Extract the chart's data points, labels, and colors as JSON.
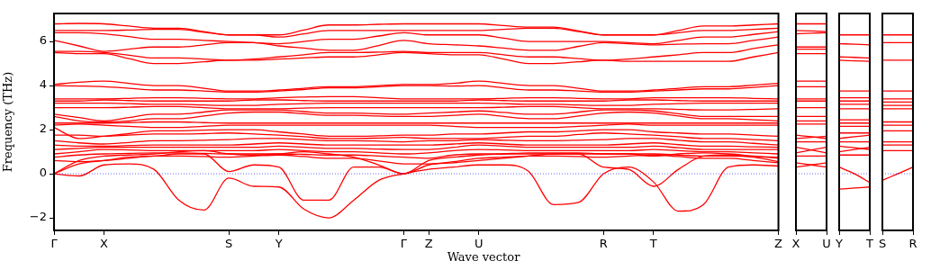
{
  "chart_data": [
    {
      "type": "line",
      "xlabel": "Wave vector",
      "ylabel": "Frequency (THz)",
      "legend": false,
      "grid": false,
      "marker": "none",
      "line_style": "solid",
      "ylim": [
        -2.57,
        7.27
      ],
      "yticks": [
        {
          "value": -2,
          "label": "−2"
        },
        0,
        2,
        4,
        6
      ],
      "ref_lines": [
        {
          "axis": "y",
          "value": 0,
          "color": "#0000ff",
          "line_style": "dotted"
        }
      ],
      "categories": [
        "Γ",
        null,
        "X",
        null,
        null,
        null,
        null,
        "S",
        null,
        "Y",
        null,
        null,
        null,
        null,
        "Γ",
        "Z",
        null,
        "U",
        null,
        null,
        null,
        null,
        "R",
        null,
        "T",
        null,
        null,
        null,
        null,
        "Z"
      ],
      "series": [
        {
          "color": "#ff0000",
          "values": [
            6.8,
            6.82,
            6.8,
            6.7,
            6.6,
            6.6,
            6.45,
            6.3,
            6.3,
            6.3,
            6.52,
            6.75,
            6.75,
            6.78,
            6.8,
            6.8,
            6.8,
            6.8,
            6.72,
            6.65,
            6.65,
            6.48,
            6.3,
            6.3,
            6.3,
            6.5,
            6.7,
            6.7,
            6.75,
            6.8
          ]
        },
        {
          "color": "#ff0000",
          "values": [
            6.5,
            6.5,
            6.5,
            6.52,
            6.55,
            6.55,
            6.42,
            6.3,
            6.3,
            6.2,
            6.35,
            6.5,
            6.5,
            6.5,
            6.5,
            6.5,
            6.5,
            6.5,
            6.55,
            6.6,
            6.6,
            6.45,
            6.3,
            6.3,
            6.3,
            6.4,
            6.5,
            6.5,
            6.55,
            6.6
          ]
        },
        {
          "color": "#ff0000",
          "values": [
            6.4,
            6.4,
            6.35,
            6.22,
            6.1,
            6.1,
            6.05,
            6.0,
            5.95,
            5.9,
            6.0,
            6.1,
            6.1,
            6.25,
            6.4,
            6.3,
            6.3,
            6.3,
            6.15,
            6.0,
            6.0,
            6.0,
            6.0,
            5.95,
            5.9,
            6.05,
            6.2,
            6.2,
            6.32,
            6.45
          ]
        },
        {
          "color": "#ff0000",
          "values": [
            6.05,
            5.8,
            5.55,
            5.65,
            5.75,
            5.75,
            5.85,
            5.95,
            5.95,
            5.8,
            5.7,
            5.6,
            5.6,
            5.82,
            6.05,
            5.9,
            5.85,
            5.8,
            5.7,
            5.6,
            5.6,
            5.78,
            5.95,
            5.9,
            5.85,
            5.88,
            5.9,
            5.9,
            6.05,
            6.2
          ]
        },
        {
          "color": "#ff0000",
          "values": [
            5.55,
            5.55,
            5.5,
            5.38,
            5.25,
            5.25,
            5.2,
            5.15,
            5.2,
            5.3,
            5.4,
            5.5,
            5.5,
            5.52,
            5.55,
            5.5,
            5.5,
            5.5,
            5.4,
            5.3,
            5.3,
            5.22,
            5.15,
            5.2,
            5.3,
            5.4,
            5.5,
            5.5,
            5.68,
            5.85
          ]
        },
        {
          "color": "#ff0000",
          "values": [
            5.5,
            5.45,
            5.45,
            5.22,
            5.0,
            5.0,
            5.08,
            5.15,
            5.15,
            5.2,
            5.25,
            5.3,
            5.3,
            5.4,
            5.5,
            5.45,
            5.4,
            5.4,
            5.2,
            5.0,
            5.0,
            5.08,
            5.15,
            5.1,
            5.1,
            5.1,
            5.1,
            5.1,
            5.3,
            5.5
          ]
        },
        {
          "color": "#ff0000",
          "values": [
            4.05,
            4.15,
            4.2,
            4.1,
            4.0,
            4.0,
            3.88,
            3.75,
            3.75,
            3.8,
            3.88,
            3.95,
            3.95,
            4.0,
            4.05,
            4.05,
            4.1,
            4.2,
            4.1,
            4.0,
            4.0,
            3.88,
            3.75,
            3.75,
            3.8,
            3.88,
            3.95,
            3.95,
            4.02,
            4.1
          ]
        },
        {
          "color": "#ff0000",
          "values": [
            4.0,
            3.98,
            3.95,
            3.88,
            3.8,
            3.8,
            3.75,
            3.7,
            3.7,
            3.75,
            3.82,
            3.9,
            3.9,
            3.95,
            4.0,
            4.0,
            3.98,
            4.0,
            3.9,
            3.8,
            3.8,
            3.75,
            3.7,
            3.7,
            3.75,
            3.8,
            3.85,
            3.85,
            3.92,
            4.0
          ]
        },
        {
          "color": "#ff0000",
          "values": [
            3.4,
            3.4,
            3.4,
            3.42,
            3.45,
            3.45,
            3.42,
            3.4,
            3.4,
            3.45,
            3.48,
            3.5,
            3.5,
            3.45,
            3.4,
            3.4,
            3.4,
            3.4,
            3.42,
            3.45,
            3.45,
            3.42,
            3.4,
            3.4,
            3.45,
            3.45,
            3.45,
            3.45,
            3.42,
            3.4
          ]
        },
        {
          "color": "#ff0000",
          "values": [
            3.3,
            3.3,
            3.35,
            3.32,
            3.3,
            3.3,
            3.3,
            3.3,
            3.35,
            3.35,
            3.32,
            3.3,
            3.3,
            3.3,
            3.3,
            3.3,
            3.3,
            3.35,
            3.32,
            3.3,
            3.3,
            3.3,
            3.3,
            3.35,
            3.35,
            3.32,
            3.3,
            3.3,
            3.3,
            3.3
          ]
        },
        {
          "color": "#ff0000",
          "values": [
            3.2,
            3.2,
            3.2,
            3.18,
            3.15,
            3.15,
            3.12,
            3.1,
            3.1,
            3.15,
            3.18,
            3.2,
            3.2,
            3.2,
            3.2,
            3.2,
            3.2,
            3.2,
            3.18,
            3.15,
            3.15,
            3.12,
            3.1,
            3.1,
            3.15,
            3.18,
            3.2,
            3.2,
            3.2,
            3.2
          ]
        },
        {
          "color": "#ff0000",
          "values": [
            3.0,
            3.0,
            3.0,
            3.02,
            3.05,
            3.05,
            3.0,
            2.95,
            2.95,
            2.95,
            2.98,
            3.0,
            3.0,
            3.0,
            3.0,
            3.0,
            3.0,
            3.0,
            3.02,
            3.05,
            3.05,
            3.0,
            2.95,
            2.95,
            2.95,
            2.92,
            2.9,
            2.9,
            2.92,
            2.95
          ]
        },
        {
          "color": "#ff0000",
          "values": [
            2.7,
            2.55,
            2.4,
            2.55,
            2.7,
            2.7,
            2.8,
            2.9,
            2.9,
            2.9,
            2.82,
            2.75,
            2.75,
            2.72,
            2.7,
            2.75,
            2.8,
            2.85,
            2.78,
            2.7,
            2.7,
            2.8,
            2.9,
            2.9,
            2.85,
            2.72,
            2.6,
            2.6,
            2.6,
            2.6
          ]
        },
        {
          "color": "#ff0000",
          "values": [
            2.6,
            2.4,
            2.35,
            2.4,
            2.5,
            2.5,
            2.62,
            2.75,
            2.8,
            2.8,
            2.72,
            2.65,
            2.65,
            2.62,
            2.6,
            2.6,
            2.65,
            2.7,
            2.6,
            2.5,
            2.5,
            2.62,
            2.75,
            2.8,
            2.75,
            2.62,
            2.5,
            2.5,
            2.45,
            2.4
          ]
        },
        {
          "color": "#ff0000",
          "values": [
            2.3,
            2.3,
            2.3,
            2.32,
            2.35,
            2.35,
            2.32,
            2.3,
            2.3,
            2.3,
            2.3,
            2.3,
            2.3,
            2.3,
            2.3,
            2.3,
            2.3,
            2.3,
            2.3,
            2.3,
            2.3,
            2.3,
            2.3,
            2.3,
            2.3,
            2.3,
            2.3,
            2.3,
            2.3,
            2.3
          ]
        },
        {
          "color": "#ff0000",
          "values": [
            2.2,
            2.25,
            2.2,
            2.15,
            2.1,
            2.1,
            2.15,
            2.2,
            2.2,
            2.2,
            2.2,
            2.2,
            2.2,
            2.2,
            2.2,
            2.2,
            2.15,
            2.1,
            2.1,
            2.1,
            2.1,
            2.15,
            2.2,
            2.25,
            2.2,
            2.2,
            2.2,
            2.2,
            2.2,
            2.2
          ]
        },
        {
          "color": "#ff0000",
          "values": [
            2.1,
            1.6,
            1.7,
            1.82,
            1.95,
            1.95,
            1.98,
            2.0,
            2.0,
            1.9,
            1.8,
            1.7,
            1.7,
            1.72,
            1.75,
            1.75,
            1.8,
            1.8,
            1.85,
            1.9,
            1.9,
            1.95,
            2.0,
            2.0,
            1.9,
            1.85,
            1.8,
            1.8,
            1.75,
            1.7
          ]
        },
        {
          "color": "#ff0000",
          "values": [
            1.75,
            1.75,
            1.7,
            1.75,
            1.8,
            1.8,
            1.82,
            1.85,
            1.8,
            1.75,
            1.68,
            1.6,
            1.6,
            1.62,
            1.65,
            1.6,
            1.6,
            1.6,
            1.65,
            1.7,
            1.7,
            1.78,
            1.85,
            1.8,
            1.75,
            1.68,
            1.6,
            1.6,
            1.55,
            1.5
          ]
        },
        {
          "color": "#ff0000",
          "values": [
            1.5,
            1.4,
            1.35,
            1.42,
            1.5,
            1.5,
            1.52,
            1.55,
            1.6,
            1.6,
            1.55,
            1.5,
            1.5,
            1.48,
            1.45,
            1.5,
            1.5,
            1.55,
            1.52,
            1.5,
            1.5,
            1.52,
            1.55,
            1.6,
            1.6,
            1.52,
            1.45,
            1.45,
            1.38,
            1.3
          ]
        },
        {
          "color": "#ff0000",
          "values": [
            1.3,
            1.25,
            1.25,
            1.28,
            1.3,
            1.3,
            1.3,
            1.3,
            1.35,
            1.4,
            1.35,
            1.3,
            1.3,
            1.3,
            1.3,
            1.3,
            1.35,
            1.4,
            1.35,
            1.3,
            1.3,
            1.3,
            1.3,
            1.35,
            1.4,
            1.32,
            1.25,
            1.25,
            1.22,
            1.2
          ]
        },
        {
          "color": "#ff0000",
          "values": [
            1.1,
            1.15,
            1.2,
            1.2,
            1.2,
            1.2,
            1.2,
            1.2,
            1.2,
            1.25,
            1.2,
            1.15,
            1.15,
            1.12,
            1.1,
            1.1,
            1.2,
            1.3,
            1.25,
            1.2,
            1.2,
            1.2,
            1.2,
            1.2,
            1.25,
            1.18,
            1.1,
            1.1,
            1.1,
            1.1
          ]
        },
        {
          "color": "#ff0000",
          "values": [
            0.9,
            1.0,
            1.1,
            1.08,
            1.05,
            1.05,
            1.05,
            1.05,
            1.05,
            1.1,
            1.05,
            1.0,
            1.0,
            0.95,
            0.9,
            0.95,
            1.05,
            1.1,
            1.08,
            1.05,
            1.05,
            1.05,
            1.05,
            1.05,
            1.1,
            1.05,
            1.0,
            1.0,
            0.95,
            0.9
          ]
        },
        {
          "color": "#ff0000",
          "values": [
            0.75,
            0.85,
            0.9,
            0.92,
            0.95,
            0.95,
            0.92,
            0.9,
            0.9,
            0.9,
            0.88,
            0.85,
            0.85,
            0.8,
            0.75,
            0.7,
            0.85,
            0.9,
            0.9,
            0.9,
            0.9,
            0.9,
            0.9,
            0.9,
            0.9,
            0.85,
            0.8,
            0.8,
            0.78,
            0.75
          ]
        },
        {
          "color": "#ff0000",
          "values": [
            0.6,
            0.55,
            0.6,
            0.7,
            0.8,
            0.8,
            0.78,
            0.75,
            0.8,
            0.85,
            0.78,
            0.7,
            0.7,
            0.58,
            0.45,
            0.45,
            0.55,
            0.7,
            0.75,
            0.8,
            0.8,
            0.78,
            0.75,
            0.8,
            0.85,
            0.78,
            0.7,
            0.7,
            0.6,
            0.5
          ]
        },
        {
          "color": "#ff0000",
          "values": [
            0,
            -0.1,
            0.4,
            0.45,
            0.2,
            -1.2,
            -1.65,
            -0.2,
            -0.57,
            -0.6,
            -1.6,
            -2.0,
            -1.2,
            -0.3,
            0,
            0.2,
            0.3,
            0.4,
            0.4,
            0.1,
            -1.4,
            -1.3,
            0,
            0.3,
            -0.37,
            -1.7,
            -1.4,
            0.3,
            0.4,
            0.35
          ]
        },
        {
          "color": "#ff0000",
          "values": [
            0,
            0.45,
            0.6,
            0.75,
            0.8,
            0.9,
            0.9,
            0.1,
            0.4,
            0.3,
            -1.2,
            -1.2,
            0.3,
            0.3,
            0,
            0.4,
            0.5,
            0.6,
            0.7,
            0.8,
            0.9,
            0.9,
            0.3,
            0.2,
            -0.57,
            0.2,
            0.8,
            0.85,
            0.75,
            0.55
          ]
        },
        {
          "color": "#ff0000",
          "values": [
            0,
            0.6,
            0.8,
            0.85,
            0.9,
            1.0,
            1.05,
            0.9,
            0.85,
            0.9,
            1.0,
            0.9,
            0.75,
            0.4,
            0,
            0.6,
            0.75,
            0.85,
            0.9,
            0.95,
            0.95,
            0.95,
            0.9,
            0.9,
            0.8,
            0.9,
            0.95,
            0.9,
            0.8,
            0.7
          ]
        }
      ]
    },
    {
      "type": "line",
      "legend": false,
      "grid": false,
      "marker": "none",
      "line_style": "solid",
      "tick_labels": "x",
      "ylim": [
        -2.57,
        7.27
      ],
      "categories": [
        "X",
        null,
        "U"
      ],
      "ref_lines": [
        {
          "axis": "y",
          "value": 0,
          "color": "#0000ff",
          "line_style": "dotted"
        }
      ],
      "series": [
        {
          "color": "#ff0000",
          "values": [
            6.8,
            6.8,
            6.8
          ]
        },
        {
          "color": "#ff0000",
          "values": [
            6.5,
            6.48,
            6.45
          ]
        },
        {
          "color": "#ff0000",
          "values": [
            6.35,
            6.38,
            6.4
          ]
        },
        {
          "color": "#ff0000",
          "values": [
            5.75,
            5.75,
            5.75
          ]
        },
        {
          "color": "#ff0000",
          "values": [
            5.65,
            5.65,
            5.65
          ]
        },
        {
          "color": "#ff0000",
          "values": [
            5.45,
            5.45,
            5.45
          ]
        },
        {
          "color": "#ff0000",
          "values": [
            4.2,
            4.2,
            4.2
          ]
        },
        {
          "color": "#ff0000",
          "values": [
            3.95,
            3.95,
            3.95
          ]
        },
        {
          "color": "#ff0000",
          "values": [
            3.4,
            3.4,
            3.4
          ]
        },
        {
          "color": "#ff0000",
          "values": [
            3.3,
            3.3,
            3.3
          ]
        },
        {
          "color": "#ff0000",
          "values": [
            3.0,
            3.0,
            3.0
          ]
        },
        {
          "color": "#ff0000",
          "values": [
            2.6,
            2.6,
            2.6
          ]
        },
        {
          "color": "#ff0000",
          "values": [
            2.4,
            2.4,
            2.4
          ]
        },
        {
          "color": "#ff0000",
          "values": [
            2.25,
            2.25,
            2.25
          ]
        },
        {
          "color": "#ff0000",
          "values": [
            1.75,
            1.68,
            1.6
          ]
        },
        {
          "color": "#ff0000",
          "values": [
            1.6,
            1.65,
            1.7
          ]
        },
        {
          "color": "#ff0000",
          "values": [
            1.45,
            1.45,
            1.45
          ]
        },
        {
          "color": "#ff0000",
          "values": [
            1.2,
            1.08,
            0.95
          ]
        },
        {
          "color": "#ff0000",
          "values": [
            0.95,
            1.08,
            1.2
          ]
        },
        {
          "color": "#ff0000",
          "values": [
            0.8,
            0.8,
            0.8
          ]
        },
        {
          "color": "#ff0000",
          "values": [
            0.5,
            0.4,
            0.3
          ]
        },
        {
          "color": "#ff0000",
          "values": [
            0.3,
            0.4,
            0.5
          ]
        }
      ]
    },
    {
      "type": "line",
      "legend": false,
      "grid": false,
      "marker": "none",
      "line_style": "solid",
      "tick_labels": "x",
      "ylim": [
        -2.57,
        7.27
      ],
      "categories": [
        "Y",
        null,
        "T"
      ],
      "ref_lines": [
        {
          "axis": "y",
          "value": 0,
          "color": "#0000ff",
          "line_style": "dotted"
        }
      ],
      "series": [
        {
          "color": "#ff0000",
          "values": [
            6.3,
            6.3,
            6.3
          ]
        },
        {
          "color": "#ff0000",
          "values": [
            5.9,
            5.88,
            5.85
          ]
        },
        {
          "color": "#ff0000",
          "values": [
            5.3,
            5.28,
            5.25
          ]
        },
        {
          "color": "#ff0000",
          "values": [
            5.15,
            5.12,
            5.1
          ]
        },
        {
          "color": "#ff0000",
          "values": [
            3.75,
            3.75,
            3.75
          ]
        },
        {
          "color": "#ff0000",
          "values": [
            3.45,
            3.45,
            3.45
          ]
        },
        {
          "color": "#ff0000",
          "values": [
            3.3,
            3.3,
            3.3
          ]
        },
        {
          "color": "#ff0000",
          "values": [
            3.15,
            3.15,
            3.15
          ]
        },
        {
          "color": "#ff0000",
          "values": [
            2.95,
            2.95,
            2.95
          ]
        },
        {
          "color": "#ff0000",
          "values": [
            2.45,
            2.45,
            2.45
          ]
        },
        {
          "color": "#ff0000",
          "values": [
            2.3,
            2.3,
            2.3
          ]
        },
        {
          "color": "#ff0000",
          "values": [
            2.15,
            2.15,
            2.15
          ]
        },
        {
          "color": "#ff0000",
          "values": [
            1.85,
            1.85,
            1.85
          ]
        },
        {
          "color": "#ff0000",
          "values": [
            1.6,
            1.68,
            1.75
          ]
        },
        {
          "color": "#ff0000",
          "values": [
            1.45,
            1.45,
            1.45
          ]
        },
        {
          "color": "#ff0000",
          "values": [
            1.25,
            1.18,
            1.1
          ]
        },
        {
          "color": "#ff0000",
          "values": [
            1.0,
            1.1,
            1.2
          ]
        },
        {
          "color": "#ff0000",
          "values": [
            0.85,
            0.85,
            0.85
          ]
        },
        {
          "color": "#ff0000",
          "values": [
            0.3,
            0.0,
            -0.4
          ]
        },
        {
          "color": "#ff0000",
          "values": [
            -0.7,
            -0.65,
            -0.6
          ]
        }
      ]
    },
    {
      "type": "line",
      "legend": false,
      "grid": false,
      "marker": "none",
      "line_style": "solid",
      "tick_labels": "x",
      "ylim": [
        -2.57,
        7.27
      ],
      "categories": [
        "S",
        null,
        "R"
      ],
      "ref_lines": [
        {
          "axis": "y",
          "value": 0,
          "color": "#0000ff",
          "line_style": "dotted"
        }
      ],
      "series": [
        {
          "color": "#ff0000",
          "values": [
            6.3,
            6.3,
            6.3
          ]
        },
        {
          "color": "#ff0000",
          "values": [
            5.95,
            5.95,
            5.95
          ]
        },
        {
          "color": "#ff0000",
          "values": [
            5.15,
            5.15,
            5.15
          ]
        },
        {
          "color": "#ff0000",
          "values": [
            3.75,
            3.75,
            3.75
          ]
        },
        {
          "color": "#ff0000",
          "values": [
            3.4,
            3.4,
            3.4
          ]
        },
        {
          "color": "#ff0000",
          "values": [
            3.25,
            3.25,
            3.25
          ]
        },
        {
          "color": "#ff0000",
          "values": [
            3.1,
            3.1,
            3.1
          ]
        },
        {
          "color": "#ff0000",
          "values": [
            2.95,
            2.95,
            2.95
          ]
        },
        {
          "color": "#ff0000",
          "values": [
            2.35,
            2.35,
            2.35
          ]
        },
        {
          "color": "#ff0000",
          "values": [
            2.2,
            2.2,
            2.2
          ]
        },
        {
          "color": "#ff0000",
          "values": [
            1.95,
            1.95,
            1.95
          ]
        },
        {
          "color": "#ff0000",
          "values": [
            1.45,
            1.45,
            1.45
          ]
        },
        {
          "color": "#ff0000",
          "values": [
            1.3,
            1.3,
            1.3
          ]
        },
        {
          "color": "#ff0000",
          "values": [
            1.05,
            1.05,
            1.05
          ]
        },
        {
          "color": "#ff0000",
          "values": [
            -0.3,
            0.0,
            0.3
          ]
        }
      ]
    }
  ]
}
